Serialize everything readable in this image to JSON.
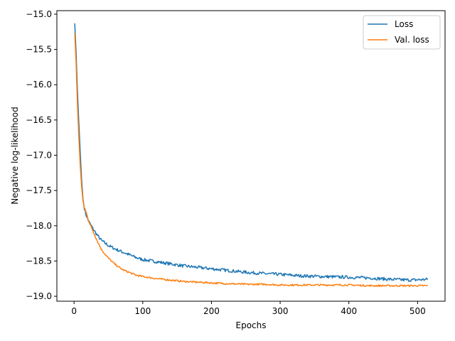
{
  "chart_data": {
    "type": "line",
    "title": "",
    "xlabel": "Epochs",
    "ylabel": "Negative log-likelihood",
    "xlim": [
      -25,
      540
    ],
    "ylim": [
      -19.07,
      -14.95
    ],
    "xticks": [
      0,
      100,
      200,
      300,
      400,
      500
    ],
    "yticks": [
      -19.0,
      -18.5,
      -18.0,
      -17.5,
      -17.0,
      -16.5,
      -16.0,
      -15.5,
      -15.0
    ],
    "ytick_labels": [
      "−19.0",
      "−18.5",
      "−18.0",
      "−17.5",
      "−17.0",
      "−16.5",
      "−16.0",
      "−15.5",
      "−15.0"
    ],
    "grid": false,
    "legend_position": "top-right",
    "series": [
      {
        "name": "Loss",
        "color": "#1f77b4",
        "points": [
          [
            1,
            -15.13
          ],
          [
            3,
            -15.55
          ],
          [
            5,
            -16.1
          ],
          [
            7,
            -16.55
          ],
          [
            9,
            -16.95
          ],
          [
            11,
            -17.35
          ],
          [
            13,
            -17.62
          ],
          [
            15,
            -17.75
          ],
          [
            18,
            -17.86
          ],
          [
            21,
            -17.93
          ],
          [
            25,
            -18.0
          ],
          [
            30,
            -18.08
          ],
          [
            35,
            -18.15
          ],
          [
            40,
            -18.21
          ],
          [
            50,
            -18.28
          ],
          [
            60,
            -18.33
          ],
          [
            70,
            -18.37
          ],
          [
            80,
            -18.41
          ],
          [
            90,
            -18.45
          ],
          [
            100,
            -18.48
          ],
          [
            120,
            -18.51
          ],
          [
            140,
            -18.54
          ],
          [
            160,
            -18.57
          ],
          [
            180,
            -18.59
          ],
          [
            200,
            -18.61
          ],
          [
            220,
            -18.63
          ],
          [
            250,
            -18.66
          ],
          [
            280,
            -18.68
          ],
          [
            300,
            -18.69
          ],
          [
            330,
            -18.71
          ],
          [
            360,
            -18.72
          ],
          [
            400,
            -18.73
          ],
          [
            430,
            -18.74
          ],
          [
            460,
            -18.76
          ],
          [
            490,
            -18.77
          ],
          [
            515,
            -18.76
          ]
        ]
      },
      {
        "name": "Val. loss",
        "color": "#ff7f0e",
        "points": [
          [
            1,
            -15.27
          ],
          [
            3,
            -15.7
          ],
          [
            5,
            -16.3
          ],
          [
            7,
            -16.75
          ],
          [
            9,
            -17.15
          ],
          [
            11,
            -17.45
          ],
          [
            13,
            -17.65
          ],
          [
            15,
            -17.74
          ],
          [
            18,
            -17.82
          ],
          [
            21,
            -17.92
          ],
          [
            25,
            -18.02
          ],
          [
            30,
            -18.13
          ],
          [
            35,
            -18.24
          ],
          [
            40,
            -18.34
          ],
          [
            50,
            -18.46
          ],
          [
            60,
            -18.55
          ],
          [
            70,
            -18.62
          ],
          [
            80,
            -18.66
          ],
          [
            90,
            -18.7
          ],
          [
            100,
            -18.72
          ],
          [
            120,
            -18.75
          ],
          [
            140,
            -18.77
          ],
          [
            160,
            -18.79
          ],
          [
            180,
            -18.8
          ],
          [
            200,
            -18.81
          ],
          [
            220,
            -18.82
          ],
          [
            250,
            -18.83
          ],
          [
            280,
            -18.83
          ],
          [
            300,
            -18.84
          ],
          [
            330,
            -18.84
          ],
          [
            360,
            -18.84
          ],
          [
            400,
            -18.84
          ],
          [
            430,
            -18.85
          ],
          [
            460,
            -18.85
          ],
          [
            490,
            -18.85
          ],
          [
            515,
            -18.85
          ]
        ]
      }
    ]
  }
}
